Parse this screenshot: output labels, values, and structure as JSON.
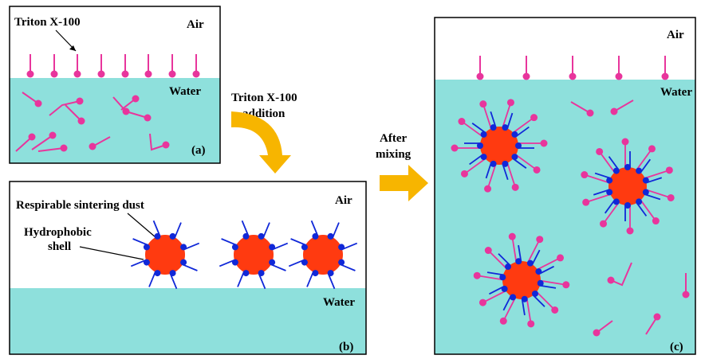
{
  "panel_a": {
    "molecule_label": "Triton X-100",
    "air": "Air",
    "water": "Water",
    "tag": "(a)"
  },
  "addition_label": [
    "Triton X-100",
    "addition"
  ],
  "panel_b": {
    "air": "Air",
    "dust_label": "Respirable sintering dust",
    "shell_label": [
      "Hydrophobic",
      "shell"
    ],
    "water": "Water",
    "tag": "(b)"
  },
  "mixing_label": [
    "After",
    "mixing"
  ],
  "panel_c": {
    "air": "Air",
    "water": "Water",
    "tag": "(c)"
  }
}
